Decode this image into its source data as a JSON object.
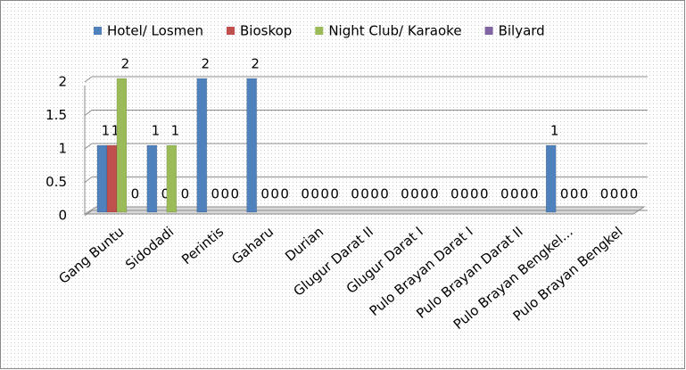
{
  "chart_data": {
    "type": "bar",
    "categories": [
      "Gang Buntu",
      "Sidodadi",
      "Perintis",
      "Gaharu",
      "Durian",
      "Glugur Darat II",
      "Glugur Darat I",
      "Pulo Brayan Darat I",
      "Pulo Brayan Darat II",
      "Pulo Brayan Bengkel...",
      "Pulo Brayan Bengkel"
    ],
    "series": [
      {
        "name": "Hotel/ Losmen",
        "color": "#4f81bd",
        "values": [
          1,
          1,
          2,
          2,
          0,
          0,
          0,
          0,
          0,
          1,
          0
        ]
      },
      {
        "name": "Bioskop",
        "color": "#c0504d",
        "values": [
          1,
          0,
          0,
          0,
          0,
          0,
          0,
          0,
          0,
          0,
          0
        ]
      },
      {
        "name": "Night Club/ Karaoke",
        "color": "#9bbb59",
        "values": [
          2,
          1,
          0,
          0,
          0,
          0,
          0,
          0,
          0,
          0,
          0
        ]
      },
      {
        "name": "Bilyard",
        "color": "#8064a2",
        "values": [
          0,
          0,
          0,
          0,
          0,
          0,
          0,
          0,
          0,
          0,
          0
        ]
      }
    ],
    "ylim": [
      0,
      2
    ],
    "yticks": [
      0,
      0.5,
      1,
      1.5,
      2
    ],
    "grid": true,
    "legend": "top"
  }
}
